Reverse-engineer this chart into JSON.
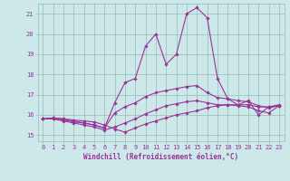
{
  "xlabel": "Windchill (Refroidissement éolien,°C)",
  "background_color": "#cce8e8",
  "line_color": "#993399",
  "xlim": [
    -0.5,
    23.5
  ],
  "ylim": [
    14.7,
    21.5
  ],
  "yticks": [
    15,
    16,
    17,
    18,
    19,
    20,
    21
  ],
  "xticks": [
    0,
    1,
    2,
    3,
    4,
    5,
    6,
    7,
    8,
    9,
    10,
    11,
    12,
    13,
    14,
    15,
    16,
    17,
    18,
    19,
    20,
    21,
    22,
    23
  ],
  "series": [
    [
      15.8,
      15.85,
      15.8,
      15.75,
      15.7,
      15.65,
      15.5,
      15.3,
      15.15,
      15.35,
      15.55,
      15.7,
      15.85,
      16.0,
      16.1,
      16.2,
      16.35,
      16.45,
      16.5,
      16.5,
      16.5,
      16.4,
      16.4,
      16.45
    ],
    [
      15.8,
      15.85,
      15.8,
      15.7,
      15.6,
      15.5,
      15.35,
      16.6,
      17.6,
      17.8,
      19.4,
      20.0,
      18.5,
      19.0,
      21.0,
      21.3,
      20.8,
      17.8,
      16.8,
      16.5,
      16.7,
      16.0,
      16.4,
      16.5
    ],
    [
      15.8,
      15.8,
      15.75,
      15.65,
      15.6,
      15.5,
      15.35,
      16.1,
      16.4,
      16.6,
      16.9,
      17.1,
      17.2,
      17.3,
      17.4,
      17.45,
      17.1,
      16.85,
      16.8,
      16.7,
      16.65,
      16.45,
      16.35,
      16.45
    ],
    [
      15.8,
      15.8,
      15.7,
      15.6,
      15.5,
      15.4,
      15.25,
      15.4,
      15.6,
      15.8,
      16.05,
      16.25,
      16.45,
      16.55,
      16.65,
      16.7,
      16.6,
      16.5,
      16.5,
      16.45,
      16.4,
      16.2,
      16.1,
      16.45
    ]
  ],
  "grid_color": "#99bbbb",
  "marker": "D",
  "markersize": 1.8,
  "linewidth": 0.8,
  "tick_fontsize": 5.0,
  "xlabel_fontsize": 5.5
}
